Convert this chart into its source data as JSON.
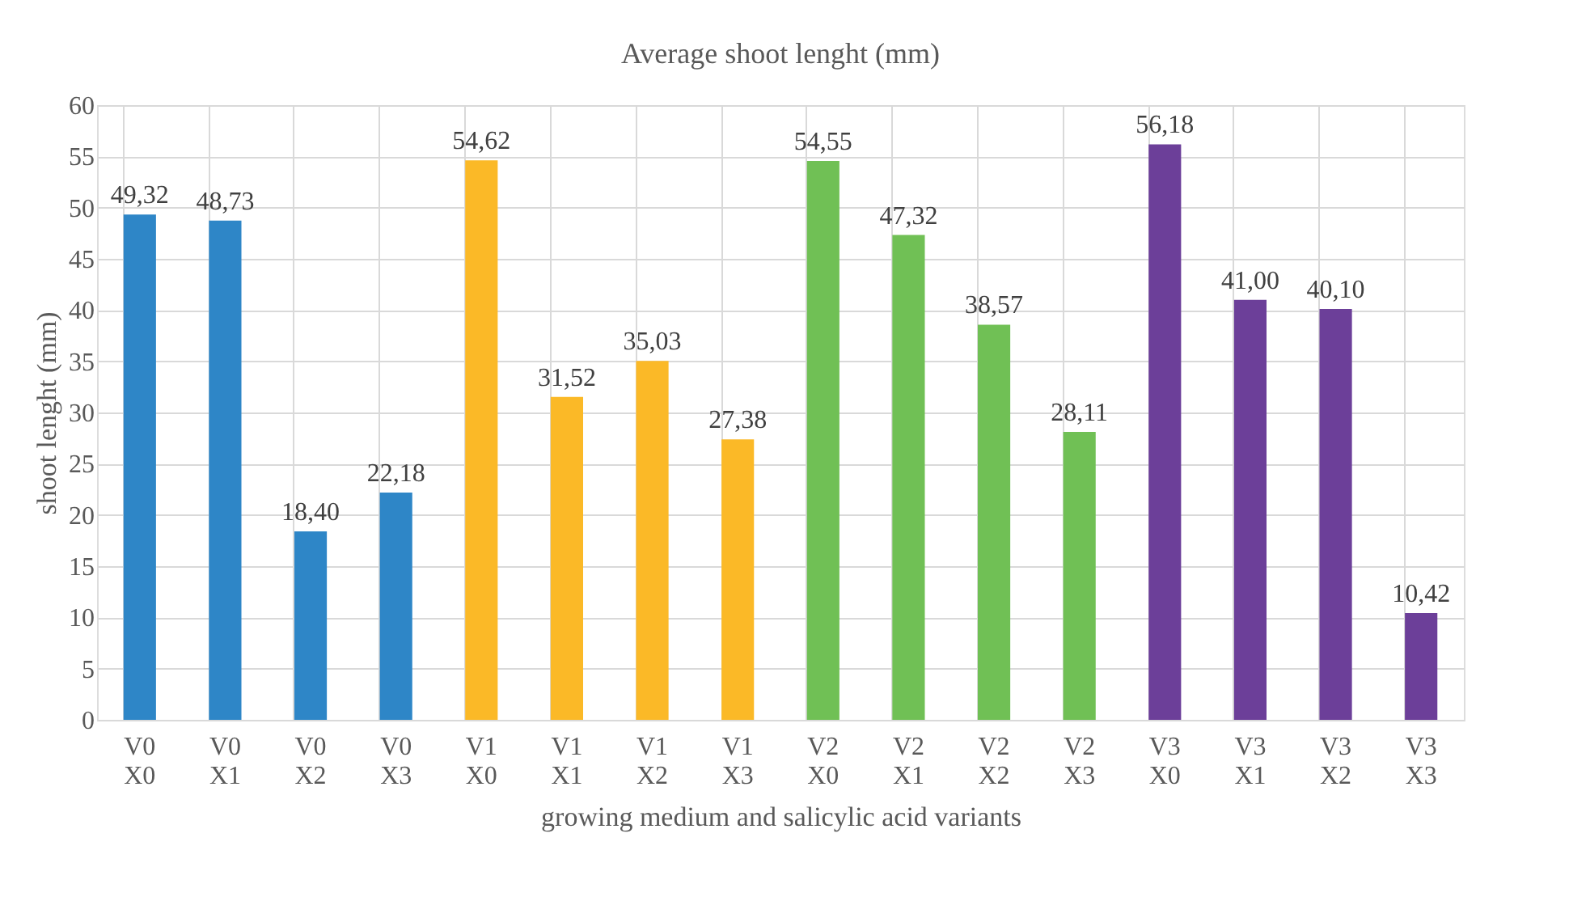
{
  "chart_data": {
    "type": "bar",
    "title": "Average shoot lenght (mm)",
    "xlabel": "growing medium and salicylic acid variants",
    "ylabel": "shoot lenght (mm)",
    "categories": [
      "V0 X0",
      "V0 X1",
      "V0 X2",
      "V0 X3",
      "V1 X0",
      "V1 X1",
      "V1 X2",
      "V1 X3",
      "V2 X0",
      "V2 X1",
      "V2 X2",
      "V2 X3",
      "V3 X0",
      "V3 X1",
      "V3 X2",
      "V3 X3"
    ],
    "values": [
      49.32,
      48.73,
      18.4,
      22.18,
      54.62,
      31.52,
      35.03,
      27.38,
      54.55,
      47.32,
      38.57,
      28.11,
      56.18,
      41.0,
      40.1,
      10.42
    ],
    "value_labels": [
      "49,32",
      "48,73",
      "18,40",
      "22,18",
      "54,62",
      "31,52",
      "35,03",
      "27,38",
      "54,55",
      "47,32",
      "38,57",
      "28,11",
      "56,18",
      "41,00",
      "40,10",
      "10,42"
    ],
    "colors": [
      "#2e86c7",
      "#2e86c7",
      "#2e86c7",
      "#2e86c7",
      "#fbb927",
      "#fbb927",
      "#fbb927",
      "#fbb927",
      "#70c055",
      "#70c055",
      "#70c055",
      "#70c055",
      "#6c3f99",
      "#6c3f99",
      "#6c3f99",
      "#6c3f99"
    ],
    "ylim": [
      0,
      60
    ],
    "yticks": [
      0,
      5,
      10,
      15,
      20,
      25,
      30,
      35,
      40,
      45,
      50,
      55,
      60
    ],
    "grid": true,
    "legend": false
  }
}
